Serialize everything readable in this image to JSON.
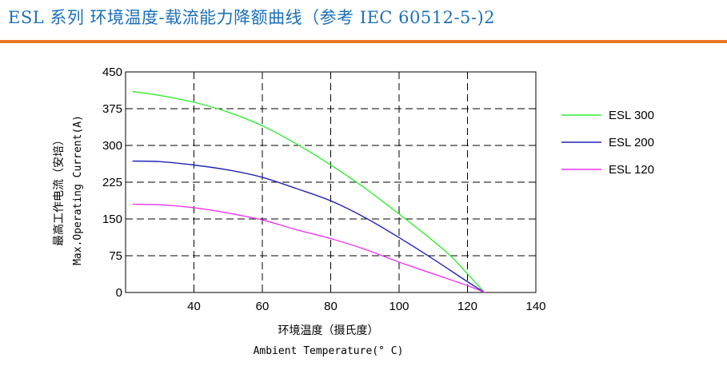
{
  "page": {
    "title": "ESL 系列 环境温度-载流能力降额曲线（参考 IEC 60512-5-)2",
    "rule_color": "#e87722",
    "title_color": "#1a6fb8"
  },
  "chart_data": {
    "type": "line",
    "title": "",
    "xlabel_cn": "环境温度（摄氏度）",
    "xlabel_en": "Ambient Temperature(° C)",
    "ylabel_cn": "最高工作电流（安培）",
    "ylabel_en": "Max.Operating Current(A)",
    "xlim": [
      20,
      140
    ],
    "ylim": [
      0,
      450
    ],
    "xticks": [
      40,
      60,
      80,
      100,
      120,
      140
    ],
    "xtick_labels": [
      "40",
      "60",
      "80",
      "100",
      "120",
      "140"
    ],
    "yticks": [
      0,
      75,
      150,
      225,
      300,
      375,
      450
    ],
    "ytick_labels": [
      "0",
      "75",
      "150",
      "225",
      "300",
      "375",
      "450"
    ],
    "grid": true,
    "legend_position": "right",
    "series": [
      {
        "name": "ESL 300",
        "color": "#33ee33",
        "x": [
          22,
          30,
          40,
          50,
          60,
          70,
          80,
          90,
          100,
          110,
          115,
          120,
          125
        ],
        "y": [
          410,
          402,
          388,
          368,
          340,
          303,
          260,
          213,
          160,
          105,
          75,
          38,
          0
        ]
      },
      {
        "name": "ESL 200",
        "color": "#2222bb",
        "x": [
          22,
          30,
          40,
          50,
          60,
          70,
          80,
          90,
          100,
          110,
          120,
          125
        ],
        "y": [
          268,
          267,
          260,
          250,
          235,
          212,
          187,
          153,
          112,
          68,
          22,
          0
        ]
      },
      {
        "name": "ESL 120",
        "color": "#ee33ee",
        "x": [
          22,
          30,
          40,
          50,
          60,
          70,
          80,
          90,
          100,
          110,
          120,
          125
        ],
        "y": [
          180,
          179,
          173,
          162,
          148,
          128,
          110,
          88,
          62,
          38,
          14,
          0
        ]
      }
    ]
  }
}
